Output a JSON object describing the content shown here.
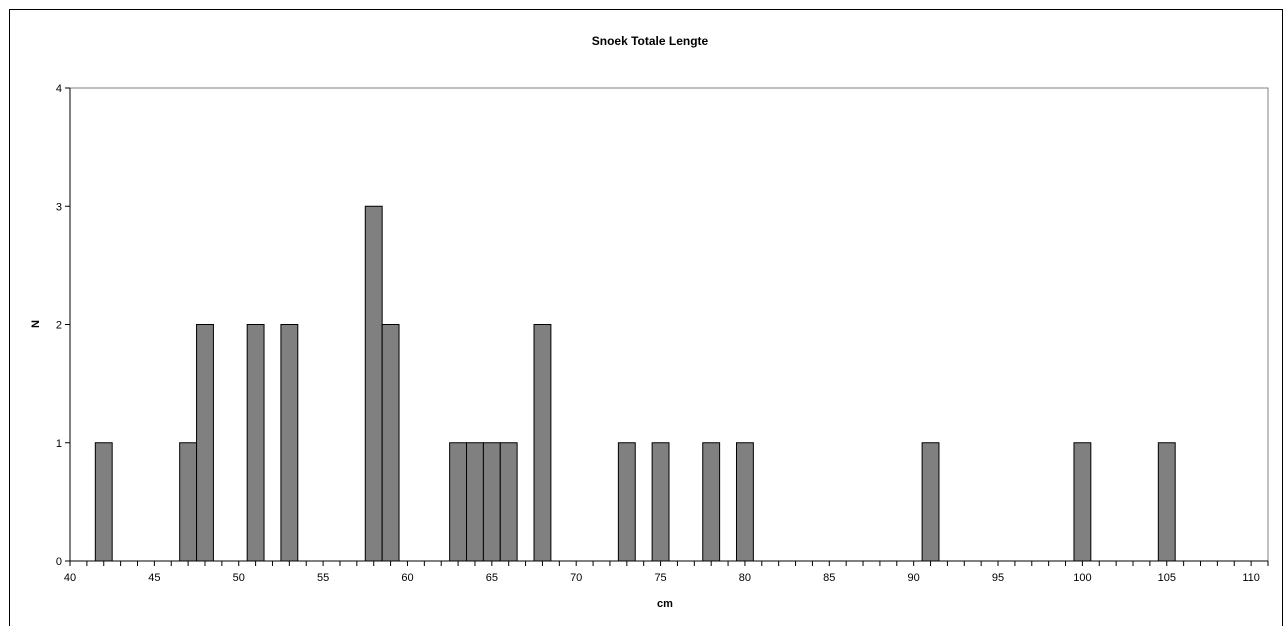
{
  "chart_data": {
    "type": "bar",
    "title": "Snoek Totale Lengte",
    "xlabel": "cm",
    "ylabel": "N",
    "xlim": [
      40,
      111
    ],
    "ylim": [
      0,
      4
    ],
    "x_ticks": [
      40,
      45,
      50,
      55,
      60,
      65,
      70,
      75,
      80,
      85,
      90,
      95,
      100,
      105,
      110
    ],
    "y_ticks": [
      0,
      1,
      2,
      3,
      4
    ],
    "grid": false,
    "legend": "none",
    "bar_color": "#808080",
    "x": [
      42,
      47,
      48,
      51,
      53,
      58,
      59,
      63,
      64,
      65,
      66,
      68,
      73,
      75,
      78,
      80,
      91,
      100,
      105
    ],
    "values": [
      1,
      1,
      2,
      2,
      2,
      3,
      2,
      1,
      1,
      1,
      1,
      2,
      1,
      1,
      1,
      1,
      1,
      1,
      1
    ]
  }
}
